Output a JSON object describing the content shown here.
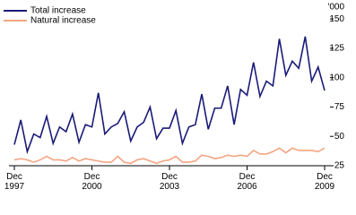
{
  "chart_data": {
    "type": "line",
    "unit_label": "'000",
    "categories": [
      "Dec 1997",
      null,
      null,
      null,
      null,
      null,
      null,
      null,
      null,
      null,
      null,
      null,
      "Dec 2000",
      null,
      null,
      null,
      null,
      null,
      null,
      null,
      null,
      null,
      null,
      null,
      "Dec 2003",
      null,
      null,
      null,
      null,
      null,
      null,
      null,
      null,
      null,
      null,
      null,
      "Dec 2006",
      null,
      null,
      null,
      null,
      null,
      null,
      null,
      null,
      null,
      null,
      null,
      "Dec 2009"
    ],
    "series": [
      {
        "name": "Total increase",
        "color": "#1a1a78",
        "values": [
          43,
          64,
          37,
          52,
          49,
          67,
          44,
          58,
          54,
          69,
          45,
          60,
          58,
          87,
          52,
          58,
          61,
          71,
          46,
          58,
          62,
          75,
          48,
          57,
          57,
          72,
          44,
          58,
          60,
          86,
          56,
          74,
          74,
          93,
          60,
          90,
          85,
          113,
          84,
          97,
          93,
          133,
          102,
          114,
          108,
          135,
          97,
          109,
          89
        ]
      },
      {
        "name": "Natural increase",
        "color": "#f4a582",
        "values": [
          30,
          31,
          30,
          28,
          30,
          33,
          30,
          30,
          29,
          32,
          29,
          31,
          30,
          29,
          28,
          28,
          33,
          28,
          27,
          30,
          31,
          29,
          27,
          29,
          30,
          33,
          28,
          28,
          29,
          34,
          33,
          31,
          32,
          34,
          33,
          34,
          33,
          38,
          35,
          35,
          37,
          40,
          36,
          40,
          38,
          38,
          38,
          37,
          40
        ]
      }
    ],
    "ylim": [
      25,
      160
    ],
    "yticks": [
      25,
      50,
      75,
      100,
      125,
      150
    ],
    "legend": "top-left"
  }
}
